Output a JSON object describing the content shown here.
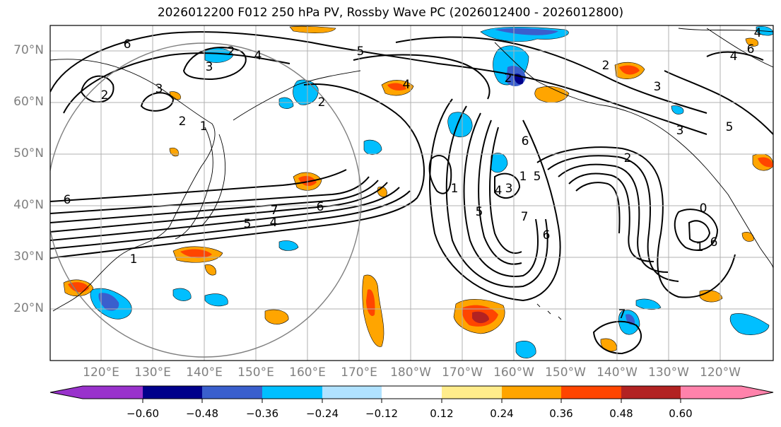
{
  "title": "2026012200 F012 250 hPa PV, Rossby Wave PC (2026012400 - 2026012800)",
  "lat_labels": [
    "70°N",
    "60°N",
    "50°N",
    "40°N",
    "30°N",
    "20°N"
  ],
  "lon_labels": [
    "120°E",
    "130°E",
    "140°E",
    "150°E",
    "160°E",
    "170°E",
    "180°W",
    "170°W",
    "160°W",
    "150°W",
    "140°W",
    "130°W",
    "120°W"
  ],
  "colorbar": {
    "ticks": [
      "−0.60",
      "−0.48",
      "−0.36",
      "−0.24",
      "−0.12",
      "0.12",
      "0.24",
      "0.36",
      "0.48",
      "0.60"
    ],
    "colors": [
      "#9932cc",
      "#00008b",
      "#3a5fcd",
      "#00bfff",
      "#b0e2ff",
      "#ffffff",
      "#ffec8b",
      "#ffa500",
      "#ff4500",
      "#b22222",
      "#ff82ab"
    ]
  },
  "contour_labels": [
    "6",
    "2",
    "4",
    "3",
    "3",
    "2",
    "2",
    "1",
    "6",
    "7",
    "5",
    "4",
    "6",
    "1",
    "5",
    "4",
    "2",
    "5",
    "1",
    "2",
    "3",
    "1",
    "6",
    "4",
    "5",
    "7",
    "6",
    "2",
    "1",
    "6",
    "0",
    "7",
    "4",
    "5",
    "2",
    "3",
    "3",
    "6",
    "4"
  ]
}
